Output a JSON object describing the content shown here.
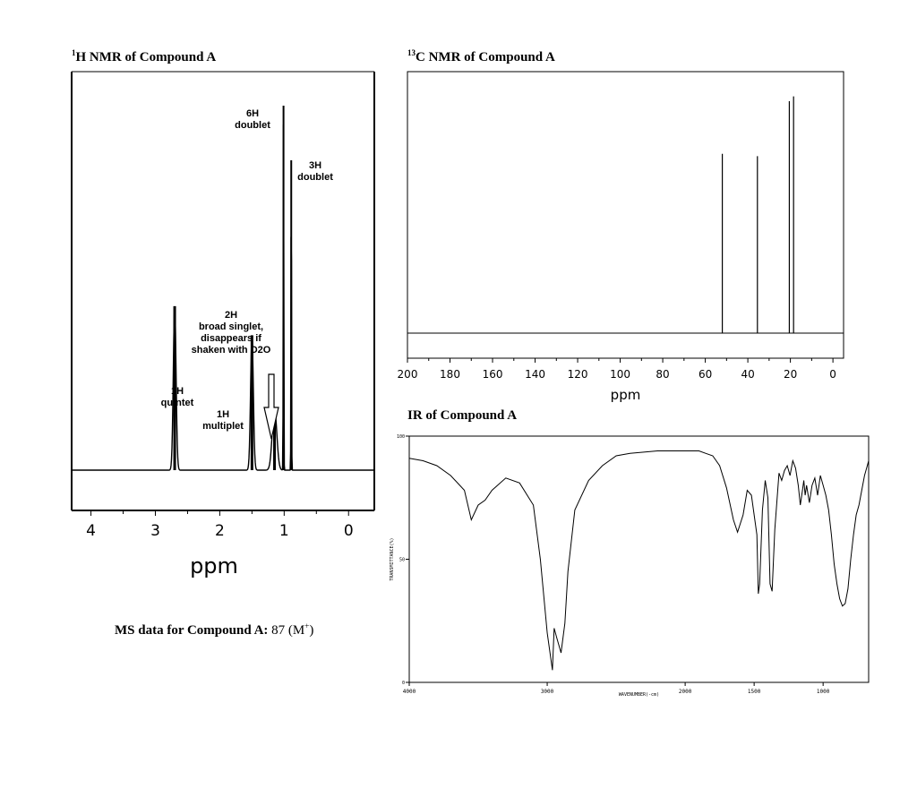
{
  "titles": {
    "h_nmr": {
      "sup": "1",
      "text": "H NMR of Compound A"
    },
    "c_nmr": {
      "sup": "13",
      "text": "C NMR of Compound A"
    },
    "ir": {
      "text": "IR of Compound A"
    }
  },
  "ms": {
    "label": "MS data for Compound A:",
    "value": "87 (M",
    "sup": "+",
    "close": ")"
  },
  "chart_data": [
    {
      "id": "h_nmr",
      "type": "line",
      "xlabel": "ppm",
      "xlim": [
        4.3,
        -0.4
      ],
      "xticks": [
        4,
        3,
        2,
        1,
        0
      ],
      "peaks": [
        {
          "ppm": 2.7,
          "height": 0.45,
          "width": 0.03,
          "label_lines": [
            "1H",
            "quintet"
          ]
        },
        {
          "ppm": 1.5,
          "height": 0.37,
          "width": 0.03,
          "label_lines": [
            "1H",
            "multiplet"
          ]
        },
        {
          "ppm": 1.15,
          "height": 0.17,
          "width": 0.05,
          "label_lines": [
            "2H",
            "broad singlet,",
            "disappears if",
            "shaken with D2O"
          ]
        },
        {
          "ppm": 1.01,
          "height": 1.0,
          "width": 0.006,
          "label_lines": [
            "6H",
            "doublet"
          ]
        },
        {
          "ppm": 0.89,
          "height": 0.85,
          "width": 0.006,
          "label_lines": [
            "3H",
            "doublet"
          ]
        }
      ]
    },
    {
      "id": "c_nmr",
      "type": "line",
      "xlabel": "ppm",
      "xlim": [
        200,
        -5
      ],
      "xticks": [
        200,
        180,
        160,
        140,
        120,
        100,
        80,
        60,
        40,
        20,
        0
      ],
      "peaks": [
        {
          "ppm": 52,
          "height": 0.75
        },
        {
          "ppm": 35.5,
          "height": 0.74
        },
        {
          "ppm": 20.5,
          "height": 0.97
        },
        {
          "ppm": 18.5,
          "height": 0.99
        }
      ]
    },
    {
      "id": "ir",
      "type": "line",
      "xlabel": "WAVENUMBER(-cm)",
      "ylabel": "TRANSMITTANCE(%)",
      "xlim": [
        4000,
        670
      ],
      "ylim": [
        0,
        100
      ],
      "xticks": [
        4000,
        3000,
        2000,
        1500,
        1000
      ],
      "yticks": [
        0,
        50,
        100
      ],
      "points": [
        [
          4000,
          91
        ],
        [
          3900,
          90
        ],
        [
          3800,
          88
        ],
        [
          3700,
          84
        ],
        [
          3600,
          78
        ],
        [
          3550,
          66
        ],
        [
          3500,
          72
        ],
        [
          3450,
          74
        ],
        [
          3400,
          78
        ],
        [
          3300,
          83
        ],
        [
          3200,
          81
        ],
        [
          3100,
          72
        ],
        [
          3050,
          50
        ],
        [
          3000,
          20
        ],
        [
          2962,
          5
        ],
        [
          2950,
          22
        ],
        [
          2930,
          18
        ],
        [
          2900,
          12
        ],
        [
          2872,
          24
        ],
        [
          2850,
          45
        ],
        [
          2800,
          70
        ],
        [
          2700,
          82
        ],
        [
          2600,
          88
        ],
        [
          2500,
          92
        ],
        [
          2400,
          93
        ],
        [
          2200,
          94
        ],
        [
          2000,
          94
        ],
        [
          1900,
          94
        ],
        [
          1850,
          93
        ],
        [
          1800,
          92
        ],
        [
          1750,
          88
        ],
        [
          1700,
          79
        ],
        [
          1650,
          66
        ],
        [
          1620,
          61
        ],
        [
          1580,
          68
        ],
        [
          1550,
          78
        ],
        [
          1520,
          76
        ],
        [
          1480,
          60
        ],
        [
          1470,
          36
        ],
        [
          1460,
          40
        ],
        [
          1440,
          70
        ],
        [
          1420,
          82
        ],
        [
          1400,
          75
        ],
        [
          1385,
          40
        ],
        [
          1370,
          37
        ],
        [
          1350,
          62
        ],
        [
          1320,
          85
        ],
        [
          1300,
          82
        ],
        [
          1280,
          86
        ],
        [
          1260,
          88
        ],
        [
          1240,
          84
        ],
        [
          1220,
          90
        ],
        [
          1200,
          87
        ],
        [
          1180,
          80
        ],
        [
          1165,
          72
        ],
        [
          1150,
          78
        ],
        [
          1140,
          82
        ],
        [
          1130,
          76
        ],
        [
          1120,
          80
        ],
        [
          1100,
          73
        ],
        [
          1080,
          80
        ],
        [
          1060,
          83
        ],
        [
          1040,
          76
        ],
        [
          1020,
          84
        ],
        [
          1000,
          80
        ],
        [
          980,
          76
        ],
        [
          960,
          70
        ],
        [
          940,
          60
        ],
        [
          920,
          48
        ],
        [
          900,
          40
        ],
        [
          880,
          34
        ],
        [
          860,
          31
        ],
        [
          840,
          32
        ],
        [
          820,
          38
        ],
        [
          800,
          50
        ],
        [
          780,
          60
        ],
        [
          760,
          68
        ],
        [
          740,
          72
        ],
        [
          720,
          78
        ],
        [
          700,
          84
        ],
        [
          680,
          88
        ],
        [
          670,
          90
        ]
      ]
    }
  ]
}
